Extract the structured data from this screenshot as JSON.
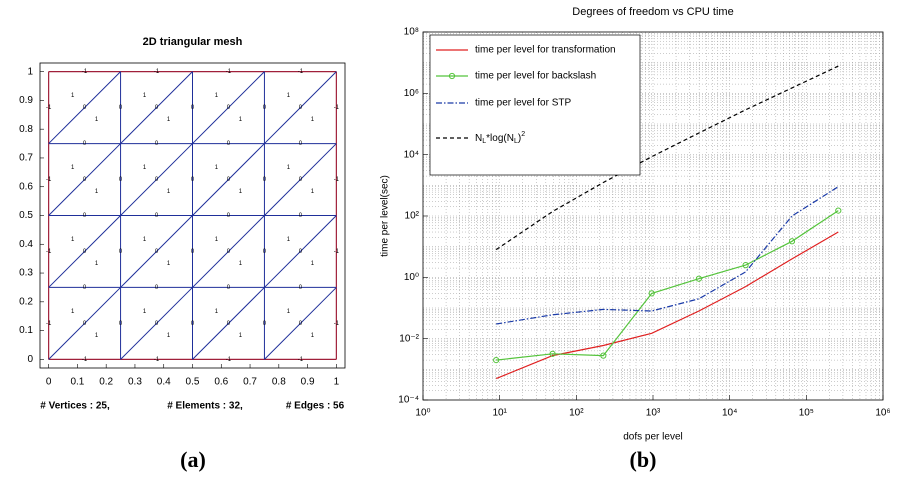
{
  "chart_data": [
    {
      "type": "mesh",
      "title": "2D triangular mesh",
      "nodes": [
        0,
        0.25,
        0.5,
        0.75,
        1
      ],
      "edge_labels": [
        -1,
        -1,
        -1,
        -1,
        0,
        0,
        0,
        0,
        0,
        0,
        0,
        0,
        0,
        0,
        0,
        0,
        -1,
        -1,
        -1,
        -1,
        -1,
        -1,
        -1,
        -1,
        0,
        0,
        0,
        0,
        0,
        0,
        0,
        0,
        0,
        0,
        0,
        0,
        -1,
        -1,
        -1,
        -1,
        0,
        0,
        0,
        0,
        0,
        0,
        0,
        0,
        0,
        0,
        0,
        0,
        0,
        0,
        0,
        0
      ],
      "element_labels": [
        1,
        1,
        1,
        1,
        1,
        1,
        1,
        1,
        1,
        1,
        1,
        1,
        1,
        1,
        1,
        1,
        1,
        1,
        1,
        1,
        1,
        1,
        1,
        1,
        1,
        1,
        1,
        1,
        1,
        1,
        1,
        1
      ],
      "edge_color": "#1f2f9a",
      "boundary_color": "#a0203a",
      "xlim": [
        -0.03,
        1.03
      ],
      "ylim": [
        -0.03,
        1.03
      ],
      "xticks": [
        0,
        0.1,
        0.2,
        0.3,
        0.4,
        0.5,
        0.6,
        0.7,
        0.8,
        0.9,
        1
      ],
      "yticks": [
        0,
        0.1,
        0.2,
        0.3,
        0.4,
        0.5,
        0.6,
        0.7,
        0.8,
        0.9,
        1
      ],
      "footer": [
        "# Vertices  :  25,",
        "# Elements  :  32,",
        "# Edges  :  56"
      ],
      "caption": "(a)"
    },
    {
      "type": "line",
      "title": "Degrees of freedom vs CPU time",
      "x_label": "dofs per level",
      "y_label": "time per level(sec)",
      "log_x": true,
      "log_y": true,
      "grid": true,
      "legend": "upper-left",
      "x": [
        9,
        49,
        225,
        961,
        3969,
        16129,
        65025,
        261121
      ],
      "series": [
        {
          "name": "time per level for transformation",
          "color": "#e02020",
          "style": "solid",
          "marker": false,
          "values": [
            0.0005,
            0.0028,
            0.006,
            0.015,
            0.08,
            0.5,
            4,
            30
          ]
        },
        {
          "name": "time per level for backslash",
          "color": "#55c43c",
          "style": "solid",
          "marker": true,
          "values": [
            0.002,
            0.0032,
            0.0028,
            0.3,
            0.9,
            2.5,
            15,
            150
          ]
        },
        {
          "name": "time per level for STP",
          "color": "#1a3aa8",
          "style": "dashdot",
          "marker": false,
          "values": [
            0.03,
            0.06,
            0.09,
            0.08,
            0.2,
            1.5,
            100,
            900
          ]
        },
        {
          "name": "N_L*log(N_L)^2",
          "color": "#000000",
          "style": "dashed",
          "marker": false,
          "values": [
            8,
            140,
            1240,
            8600,
            51000,
            290000,
            1500000,
            7700000
          ]
        }
      ],
      "xlim": [
        1,
        1000000
      ],
      "ylim": [
        0.0001,
        100000000
      ],
      "xticks": [
        {
          "value": 1,
          "label": "10⁰"
        },
        {
          "value": 10,
          "label": "10¹"
        },
        {
          "value": 100,
          "label": "10²"
        },
        {
          "value": 1000,
          "label": "10³"
        },
        {
          "value": 10000,
          "label": "10⁴"
        },
        {
          "value": 100000,
          "label": "10⁵"
        },
        {
          "value": 1000000,
          "label": "10⁶"
        }
      ],
      "yticks": [
        {
          "value": 0.0001,
          "label": "10⁻⁴"
        },
        {
          "value": 0.01,
          "label": "10⁻²"
        },
        {
          "value": 1,
          "label": "10⁰"
        },
        {
          "value": 100,
          "label": "10²"
        },
        {
          "value": 10000,
          "label": "10⁴"
        },
        {
          "value": 1000000,
          "label": "10⁶"
        },
        {
          "value": 100000000,
          "label": "10⁸"
        }
      ],
      "caption": "(b)"
    }
  ]
}
